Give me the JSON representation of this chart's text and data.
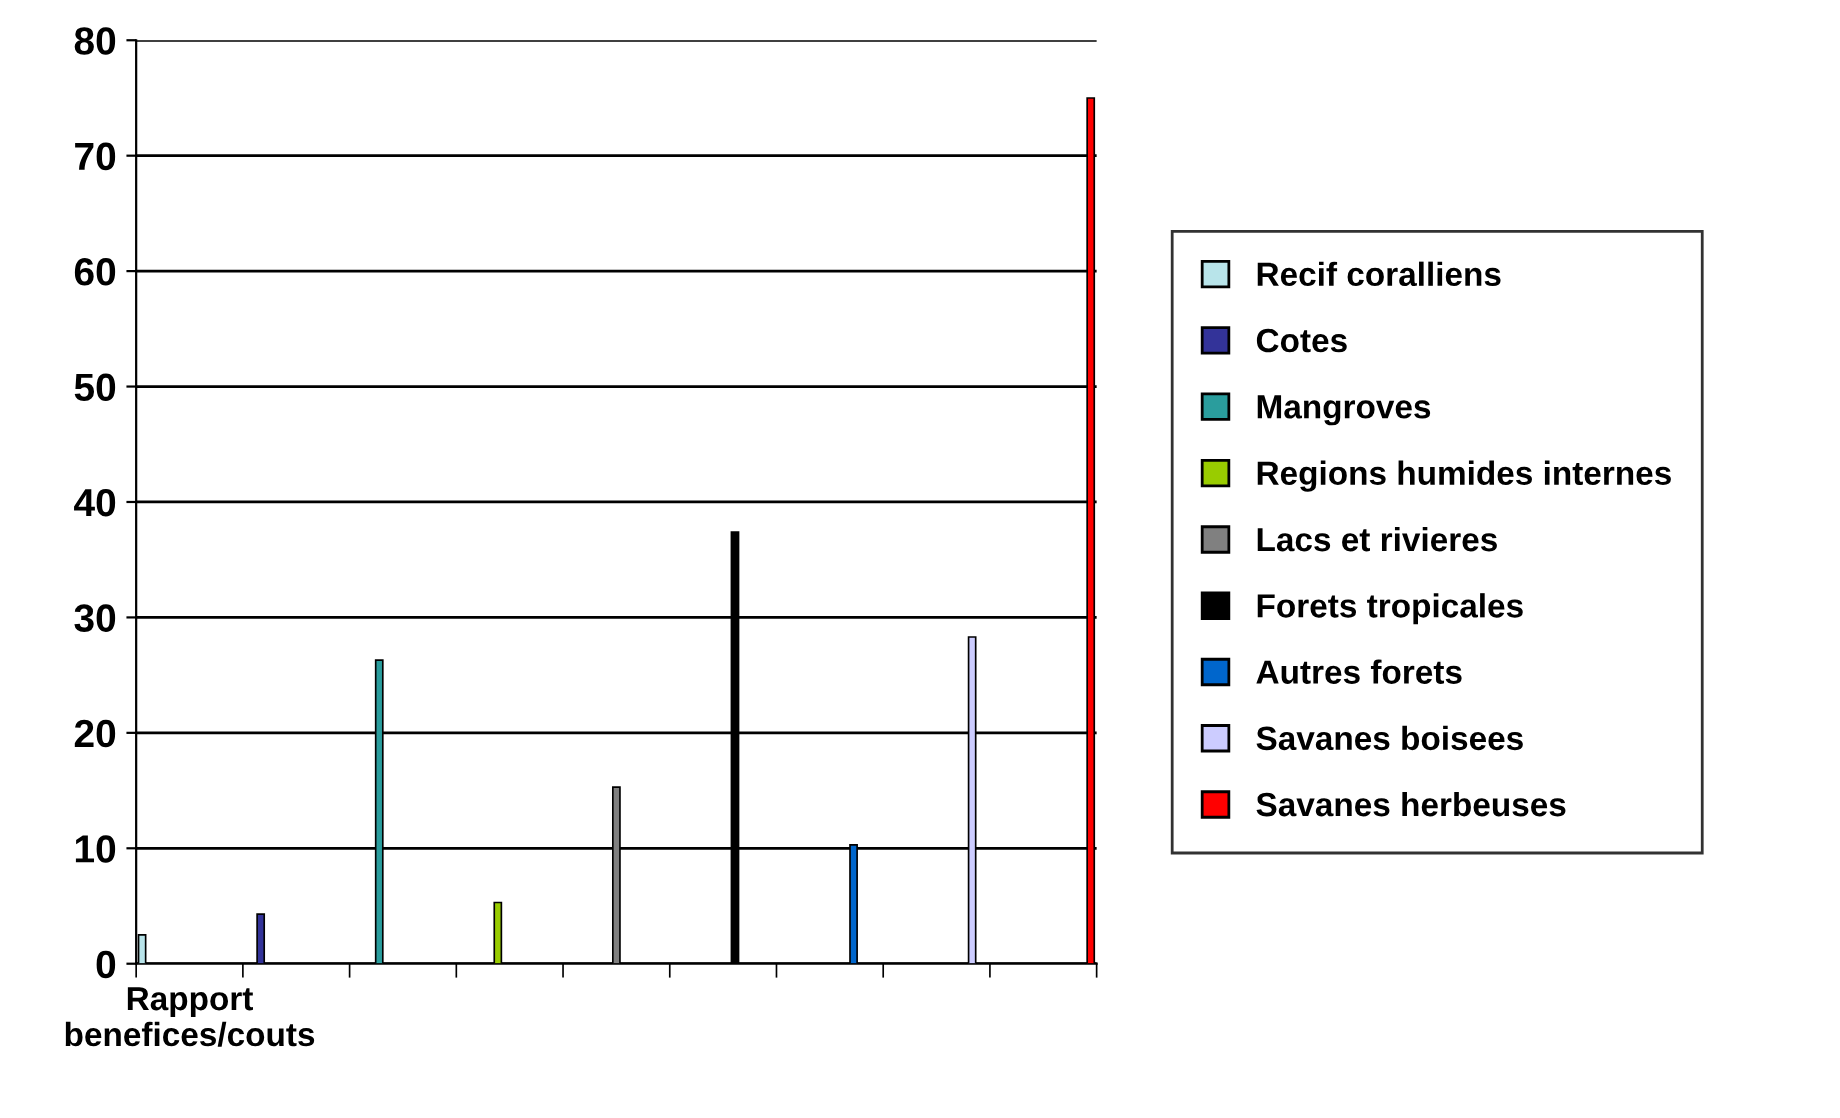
{
  "chart_data": {
    "type": "bar",
    "categories": [
      "Rapport benefices/couts",
      null,
      null,
      null,
      null,
      null,
      null,
      null,
      null
    ],
    "series": [
      {
        "name": "Recif coralliens",
        "color": "#b8e4ea",
        "values": [
          2.5,
          null,
          null,
          null,
          null,
          null,
          null,
          null,
          null
        ]
      },
      {
        "name": "Cotes",
        "color": "#333399",
        "values": [
          null,
          4.3,
          null,
          null,
          null,
          null,
          null,
          null,
          null
        ]
      },
      {
        "name": "Mangroves",
        "color": "#2a9d9d",
        "values": [
          null,
          null,
          26.3,
          null,
          null,
          null,
          null,
          null,
          null
        ]
      },
      {
        "name": "Regions humides internes",
        "color": "#99cc00",
        "values": [
          null,
          null,
          null,
          5.3,
          null,
          null,
          null,
          null,
          null
        ]
      },
      {
        "name": "Lacs et rivieres",
        "color": "#808080",
        "values": [
          null,
          null,
          null,
          null,
          15.3,
          null,
          null,
          null,
          null
        ]
      },
      {
        "name": "Forets tropicales",
        "color": "#000000",
        "values": [
          null,
          null,
          null,
          null,
          null,
          37.4,
          null,
          null,
          null
        ]
      },
      {
        "name": "Autres forets",
        "color": "#0066cc",
        "values": [
          null,
          null,
          null,
          null,
          null,
          null,
          10.3,
          null,
          null
        ]
      },
      {
        "name": "Savanes boisees",
        "color": "#ccccff",
        "values": [
          null,
          null,
          null,
          null,
          null,
          null,
          null,
          28.3,
          null
        ]
      },
      {
        "name": "Savanes herbeuses",
        "color": "#ff0000",
        "values": [
          null,
          null,
          null,
          null,
          null,
          null,
          null,
          null,
          75
        ]
      }
    ],
    "ylim": [
      0,
      80
    ],
    "yticks": [
      0,
      10,
      20,
      30,
      40,
      50,
      60,
      70,
      80
    ],
    "grid": "y",
    "legend": "right"
  }
}
